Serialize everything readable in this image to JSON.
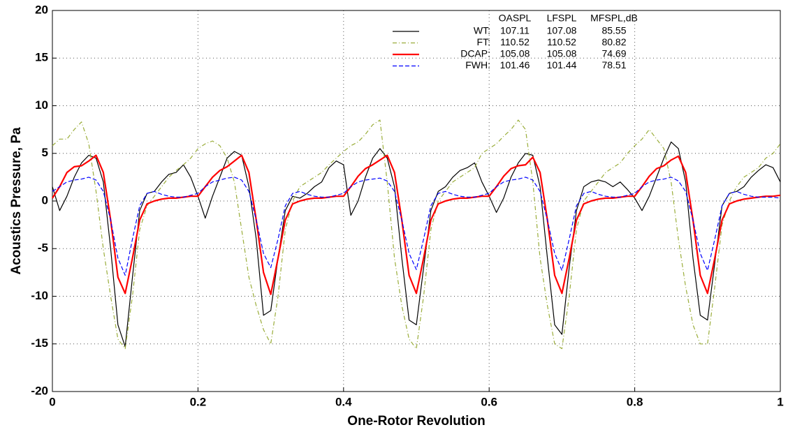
{
  "chart_data": {
    "type": "line",
    "xlabel": "One-Rotor Revolution",
    "ylabel": "Acoustics Pressure, Pa",
    "xlim": [
      0,
      1
    ],
    "ylim": [
      -20,
      20
    ],
    "xticks": [
      0,
      0.2,
      0.4,
      0.6,
      0.8,
      1
    ],
    "yticks": [
      -20,
      -15,
      -10,
      -5,
      0,
      5,
      10,
      15,
      20
    ],
    "grid": true,
    "legend_columns": [
      "OASPL",
      "LFSPL",
      "MFSPL,dB"
    ],
    "x": [
      0,
      0.01,
      0.02,
      0.03,
      0.04,
      0.05,
      0.06,
      0.07,
      0.08,
      0.09,
      0.1,
      0.11,
      0.12,
      0.13,
      0.14,
      0.15,
      0.16,
      0.17,
      0.18,
      0.19,
      0.2,
      0.21,
      0.22,
      0.23,
      0.24,
      0.25,
      0.26,
      0.27,
      0.28,
      0.29,
      0.3,
      0.31,
      0.32,
      0.33,
      0.34,
      0.35,
      0.36,
      0.37,
      0.38,
      0.39,
      0.4,
      0.41,
      0.42,
      0.43,
      0.44,
      0.45,
      0.46,
      0.47,
      0.48,
      0.49,
      0.5,
      0.51,
      0.52,
      0.53,
      0.54,
      0.55,
      0.56,
      0.57,
      0.58,
      0.59,
      0.6,
      0.61,
      0.62,
      0.63,
      0.64,
      0.65,
      0.66,
      0.67,
      0.68,
      0.69,
      0.7,
      0.71,
      0.72,
      0.73,
      0.74,
      0.75,
      0.76,
      0.77,
      0.78,
      0.79,
      0.8,
      0.81,
      0.82,
      0.83,
      0.84,
      0.85,
      0.86,
      0.87,
      0.88,
      0.89,
      0.9,
      0.91,
      0.92,
      0.93,
      0.94,
      0.95,
      0.96,
      0.97,
      0.98,
      0.99,
      1
    ],
    "series": [
      {
        "name": "WT:",
        "color": "#000000",
        "style": "solid",
        "width": 1.2,
        "levels": [
          107.11,
          107.08,
          85.55
        ],
        "values": [
          1.5,
          -1.0,
          0.5,
          2.5,
          4.0,
          4.8,
          4.5,
          2.0,
          -5.0,
          -13.0,
          -15.3,
          -8.0,
          -1.0,
          0.8,
          1.0,
          2.0,
          2.8,
          3.0,
          3.8,
          2.5,
          0.5,
          -1.8,
          0.5,
          2.5,
          4.5,
          5.2,
          4.8,
          1.5,
          -4.0,
          -12.0,
          -11.5,
          -6.0,
          -1.0,
          0.5,
          0.3,
          0.8,
          1.5,
          2.0,
          3.5,
          4.2,
          3.8,
          -1.5,
          0.0,
          2.5,
          4.5,
          5.5,
          4.5,
          1.5,
          -6.0,
          -12.5,
          -13.0,
          -7.0,
          -1.0,
          1.0,
          1.5,
          2.5,
          3.2,
          3.5,
          4.0,
          2.0,
          0.5,
          -1.2,
          0.3,
          2.5,
          4.0,
          5.0,
          4.8,
          1.5,
          -6.0,
          -13.0,
          -14.0,
          -7.0,
          -1.0,
          1.5,
          2.0,
          2.2,
          2.0,
          1.5,
          2.0,
          1.2,
          0.3,
          -1.0,
          0.5,
          2.5,
          4.5,
          6.2,
          5.5,
          2.0,
          -6.0,
          -12.0,
          -12.5,
          -6.5,
          -0.5,
          0.8,
          1.0,
          1.5,
          2.5,
          3.2,
          3.8,
          3.5,
          2.0
        ]
      },
      {
        "name": "FT:",
        "color": "#9aad3a",
        "style": "dashdot",
        "width": 1.2,
        "levels": [
          110.52,
          110.52,
          80.82
        ],
        "values": [
          5.8,
          6.5,
          6.5,
          7.5,
          8.3,
          6.0,
          1.0,
          -5.0,
          -10.0,
          -14.5,
          -15.5,
          -10.0,
          -3.0,
          -0.5,
          0.5,
          1.5,
          2.5,
          3.2,
          3.8,
          4.5,
          5.5,
          6.0,
          6.3,
          5.8,
          4.5,
          2.0,
          -3.0,
          -8.0,
          -11.0,
          -13.5,
          -15.0,
          -10.0,
          -3.0,
          0.0,
          1.5,
          2.0,
          2.5,
          3.0,
          3.8,
          4.5,
          5.2,
          5.8,
          6.2,
          7.0,
          8.0,
          8.5,
          2.0,
          -6.0,
          -11.0,
          -14.5,
          -15.5,
          -10.0,
          -3.0,
          0.0,
          1.0,
          2.0,
          2.5,
          3.0,
          3.5,
          5.0,
          5.5,
          6.0,
          6.8,
          7.5,
          8.5,
          7.5,
          2.0,
          -6.0,
          -11.0,
          -15.0,
          -15.5,
          -10.0,
          -3.0,
          0.0,
          1.0,
          2.0,
          3.0,
          3.5,
          4.0,
          5.0,
          5.8,
          6.5,
          7.5,
          6.5,
          5.5,
          2.0,
          -4.0,
          -9.0,
          -13.0,
          -15.0,
          -15.0,
          -9.0,
          -2.5,
          0.0,
          1.5,
          2.5,
          3.0,
          3.5,
          4.5,
          5.0,
          6.0
        ]
      },
      {
        "name": "DCAP:",
        "color": "#ff0000",
        "style": "solid",
        "width": 2.2,
        "levels": [
          105.08,
          105.08,
          74.69
        ],
        "values": [
          0.3,
          1.5,
          3.0,
          3.6,
          3.7,
          4.2,
          4.8,
          3.0,
          -2.0,
          -8.0,
          -9.7,
          -6.0,
          -2.0,
          -0.3,
          0.0,
          0.2,
          0.3,
          0.3,
          0.4,
          0.5,
          0.5,
          1.5,
          2.5,
          3.2,
          3.6,
          4.2,
          4.8,
          3.0,
          -2.0,
          -7.5,
          -9.8,
          -6.0,
          -2.0,
          -0.3,
          0.0,
          0.2,
          0.3,
          0.3,
          0.4,
          0.5,
          0.5,
          1.5,
          2.6,
          3.4,
          3.8,
          4.3,
          4.8,
          3.0,
          -2.0,
          -7.8,
          -9.7,
          -6.0,
          -2.0,
          -0.3,
          0.0,
          0.2,
          0.3,
          0.3,
          0.4,
          0.5,
          0.5,
          1.5,
          2.6,
          3.4,
          3.7,
          3.8,
          4.6,
          3.0,
          -2.0,
          -7.8,
          -9.7,
          -6.0,
          -2.0,
          -0.3,
          0.0,
          0.2,
          0.3,
          0.3,
          0.4,
          0.5,
          0.5,
          1.5,
          2.6,
          3.4,
          3.7,
          4.3,
          4.7,
          3.0,
          -2.0,
          -7.8,
          -9.7,
          -6.0,
          -2.0,
          -0.3,
          0.0,
          0.2,
          0.3,
          0.4,
          0.5,
          0.5,
          0.6
        ]
      },
      {
        "name": "FWH:",
        "color": "#0000ff",
        "style": "dashed",
        "width": 1.2,
        "levels": [
          101.46,
          101.44,
          78.51
        ],
        "values": [
          1.0,
          1.5,
          2.0,
          2.2,
          2.3,
          2.5,
          2.2,
          1.0,
          -2.0,
          -6.0,
          -7.8,
          -4.0,
          -0.5,
          0.8,
          1.0,
          0.7,
          0.5,
          0.4,
          0.4,
          0.6,
          0.8,
          1.5,
          2.0,
          2.2,
          2.4,
          2.5,
          2.2,
          1.0,
          -2.0,
          -5.5,
          -7.0,
          -4.0,
          -0.5,
          0.8,
          1.0,
          0.7,
          0.5,
          0.4,
          0.4,
          0.6,
          0.8,
          1.5,
          2.0,
          2.2,
          2.3,
          2.4,
          2.1,
          1.0,
          -2.0,
          -5.5,
          -7.2,
          -4.0,
          -0.5,
          0.8,
          1.0,
          0.7,
          0.5,
          0.4,
          0.4,
          0.6,
          0.8,
          1.5,
          2.0,
          2.2,
          2.3,
          2.5,
          2.2,
          1.0,
          -2.0,
          -5.5,
          -7.3,
          -4.0,
          -0.5,
          0.8,
          1.0,
          0.7,
          0.5,
          0.4,
          0.4,
          0.6,
          0.8,
          1.5,
          2.0,
          2.2,
          2.3,
          2.5,
          2.1,
          1.0,
          -2.0,
          -5.5,
          -7.3,
          -4.0,
          -0.5,
          0.8,
          1.0,
          0.7,
          0.5,
          0.4,
          0.4,
          0.4,
          0.3
        ]
      }
    ]
  }
}
